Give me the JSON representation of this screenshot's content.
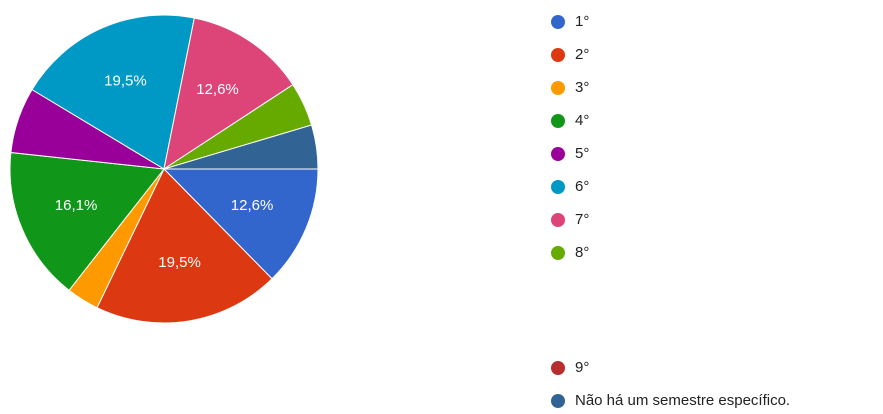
{
  "chart_data": {
    "type": "pie",
    "categories": [
      "1°",
      "2°",
      "3°",
      "4°",
      "5°",
      "6°",
      "7°",
      "8°",
      "9°",
      "Não há um semestre específico."
    ],
    "values": [
      12.6,
      19.5,
      3.4,
      16.1,
      6.9,
      19.5,
      12.6,
      4.6,
      0,
      4.6
    ],
    "value_labels": [
      "12,6%",
      "19,5%",
      null,
      "16,1%",
      null,
      "19,5%",
      "12,6%",
      null,
      null,
      null
    ],
    "colors": [
      "#3366cc",
      "#dc3912",
      "#ff9900",
      "#109618",
      "#990099",
      "#0099c6",
      "#dd4477",
      "#66aa00",
      "#b82e2e",
      "#316395"
    ]
  }
}
